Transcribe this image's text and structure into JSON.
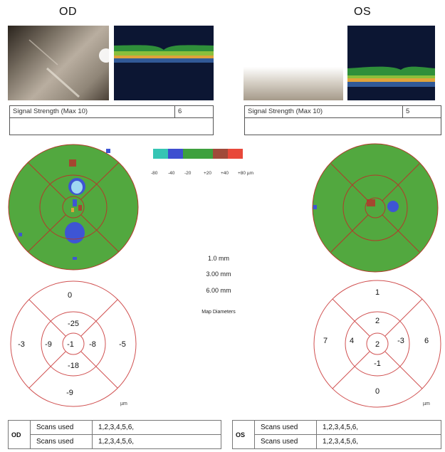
{
  "eyes": {
    "od": {
      "label": "OD",
      "signal_strength_label": "Signal Strength (Max 10)",
      "signal_strength_value": "6",
      "thickness": {
        "center": "-1",
        "inner_superior": "-25",
        "inner_inferior": "-18",
        "inner_nasal": "-8",
        "inner_temporal": "-9",
        "outer_superior": "0",
        "outer_inferior": "-9",
        "outer_nasal": "-5",
        "outer_temporal": "-3"
      },
      "unit": "µm",
      "scans_label": "Scans used",
      "scans": [
        "1,2,3,4,5,6,",
        "1,2,3,4,5,6,"
      ]
    },
    "os": {
      "label": "OS",
      "signal_strength_label": "Signal Strength (Max 10)",
      "signal_strength_value": "5",
      "thickness": {
        "center": "2",
        "inner_superior": "2",
        "inner_inferior": "-1",
        "inner_nasal": "4",
        "inner_temporal": "-3",
        "outer_superior": "1",
        "outer_inferior": "0",
        "outer_nasal": "7",
        "outer_temporal": "6"
      },
      "unit": "µm",
      "scans_label": "Scans used",
      "scans": [
        "1,2,3,4,5,6,",
        "1,2,3,4,5,6,"
      ]
    }
  },
  "legend": {
    "labels": [
      "-80",
      "-40",
      "-20",
      "+20",
      "+40",
      "+80 µm"
    ],
    "colors": [
      "#36c5b4",
      "#3e4fd0",
      "#3ea03e",
      "#a04a3a",
      "#e8483a"
    ]
  },
  "map_diameters": {
    "values": [
      "1.0 mm",
      "3.00 mm",
      "6.00 mm"
    ],
    "caption": "Map Diameters"
  },
  "colors": {
    "map_green": "#52a83f",
    "ring_line": "#c0392b",
    "thin_blue": "#3e55d4",
    "thick_red": "#a5462f",
    "light_cyan": "#9fd8f2"
  }
}
